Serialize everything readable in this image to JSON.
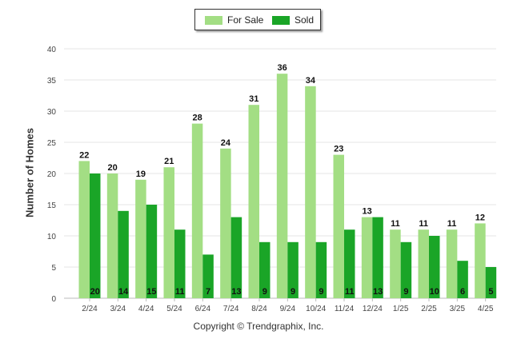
{
  "chart_data": {
    "type": "bar",
    "categories": [
      "2/24",
      "3/24",
      "4/24",
      "5/24",
      "6/24",
      "7/24",
      "8/24",
      "9/24",
      "10/24",
      "11/24",
      "12/24",
      "1/25",
      "2/25",
      "3/25",
      "4/25"
    ],
    "series": [
      {
        "name": "For Sale",
        "color": "#a3de84",
        "values": [
          22,
          20,
          19,
          21,
          28,
          24,
          31,
          36,
          34,
          23,
          13,
          11,
          11,
          11,
          12
        ]
      },
      {
        "name": "Sold",
        "color": "#1aa527",
        "values": [
          20,
          14,
          15,
          11,
          7,
          13,
          9,
          9,
          9,
          11,
          13,
          9,
          10,
          6,
          5
        ]
      }
    ],
    "xlabel": "",
    "ylabel": "Number of Homes",
    "ylim": [
      0,
      40
    ],
    "yticks": [
      0,
      5,
      10,
      15,
      20,
      25,
      30,
      35,
      40
    ],
    "grid": true,
    "legend_position": "top-center"
  },
  "footer": "Copyright © Trendgraphix, Inc."
}
